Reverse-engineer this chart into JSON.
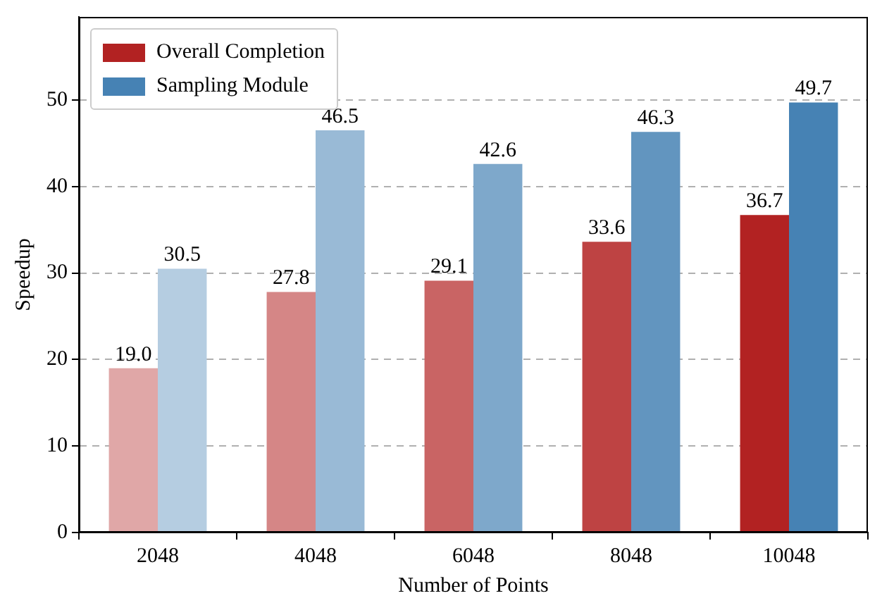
{
  "chart_data": {
    "type": "bar",
    "xlabel": "Number of Points",
    "ylabel": "Speedup",
    "categories": [
      "2048",
      "4048",
      "6048",
      "8048",
      "10048"
    ],
    "series": [
      {
        "name": "Overall Completion",
        "color": "#b22222",
        "colors": [
          "#e0a7a7",
          "#d58686",
          "#c96464",
          "#be4343",
          "#b22222"
        ],
        "values": [
          19.0,
          27.8,
          29.1,
          33.6,
          36.7
        ],
        "value_labels": [
          "19.0",
          "27.8",
          "29.1",
          "33.6",
          "36.7"
        ]
      },
      {
        "name": "Sampling Module",
        "color": "#4682b4",
        "colors": [
          "#b5cde1",
          "#99bad6",
          "#7ea8cb",
          "#6295bf",
          "#4682b4"
        ],
        "values": [
          30.5,
          46.5,
          42.6,
          46.3,
          49.7
        ],
        "value_labels": [
          "30.5",
          "46.5",
          "42.6",
          "46.3",
          "49.7"
        ]
      }
    ],
    "ylim": [
      0,
      59.6
    ],
    "yticks": [
      0,
      10,
      20,
      30,
      40,
      50
    ],
    "grid": "y",
    "legend": "top left"
  }
}
